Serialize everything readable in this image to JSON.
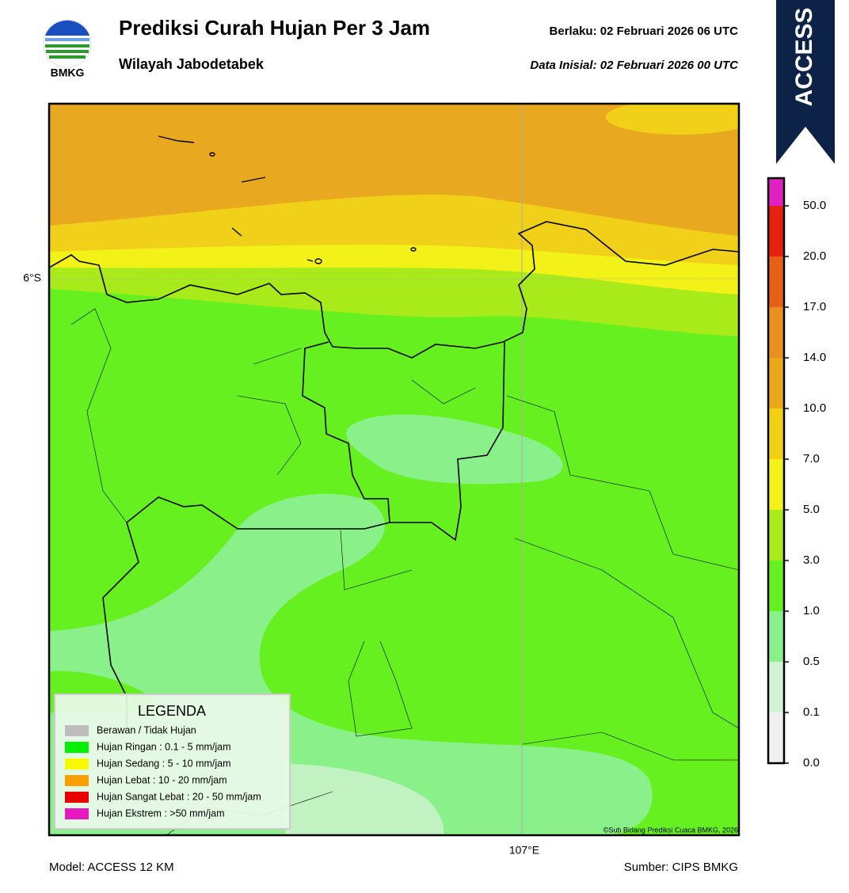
{
  "header": {
    "logo_text": "BMKG",
    "title": "Prediksi Curah Hujan Per 3 Jam",
    "subtitle": "Wilayah Jabodetabek",
    "valid": "Berlaku:  02 Februari 2026 06 UTC",
    "init": "Data Inisial:  02 Februari 2026 00 UTC",
    "badge": "ACCESS"
  },
  "map": {
    "lat_label": "6°S",
    "lon_label": "107°E",
    "credit": "©Sub Bidang Prediksi Cuaca BMKG, 2026"
  },
  "legend": {
    "title": "LEGENDA",
    "items": [
      {
        "label": "Berawan / Tidak Hujan",
        "color": "#bdbdbd"
      },
      {
        "label": "Hujan Ringan : 0.1 - 5 mm/jam",
        "color": "#00f000"
      },
      {
        "label": "Hujan Sedang : 5 - 10 mm/jam",
        "color": "#f8f800"
      },
      {
        "label": "Hujan Lebat : 10 - 20 mm/jam",
        "color": "#f8a000"
      },
      {
        "label": "Hujan Sangat Lebat : 20 - 50 mm/jam",
        "color": "#e80000"
      },
      {
        "label": "Hujan Ekstrem : >50 mm/jam",
        "color": "#e818c0"
      }
    ]
  },
  "colorbar": {
    "ticks": [
      {
        "value": 0,
        "label": "0.0"
      },
      {
        "value": 0.1,
        "label": "0.1"
      },
      {
        "value": 0.5,
        "label": "0.5"
      },
      {
        "value": 1,
        "label": "1.0"
      },
      {
        "value": 3,
        "label": "3.0"
      },
      {
        "value": 5,
        "label": "5.0"
      },
      {
        "value": 7,
        "label": "7.0"
      },
      {
        "value": 10,
        "label": "10.0"
      },
      {
        "value": 14,
        "label": "14.0"
      },
      {
        "value": 17,
        "label": "17.0"
      },
      {
        "value": 20,
        "label": "20.0"
      },
      {
        "value": 50,
        "label": "50.0"
      }
    ],
    "colors": [
      "#f0f0f0",
      "#d2f4d2",
      "#8af08a",
      "#66f020",
      "#a8ea1a",
      "#f2f218",
      "#f0d010",
      "#e8a818",
      "#e89020",
      "#e86018",
      "#e82010",
      "#e020c0"
    ]
  },
  "footer": {
    "model": "Model: ACCESS 12 KM",
    "source": "Sumber: CIPS BMKG"
  }
}
